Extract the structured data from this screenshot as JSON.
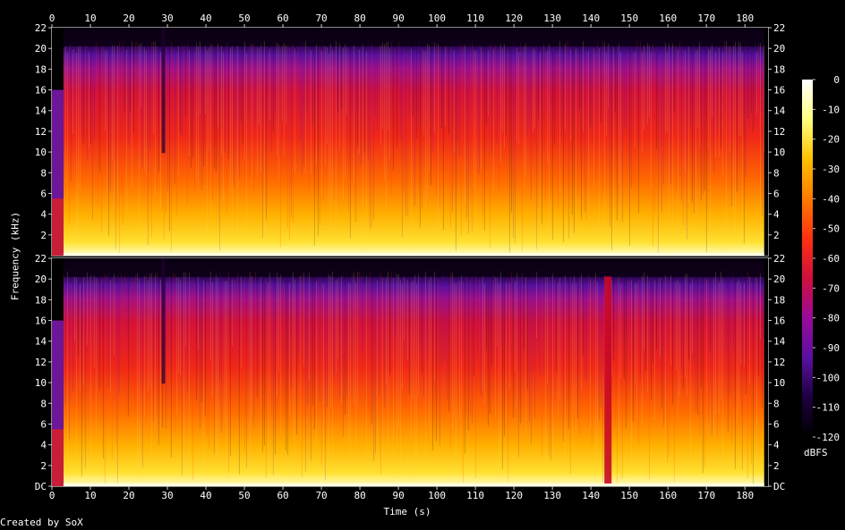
{
  "chart_data": {
    "type": "heatmap",
    "subtype": "spectrogram",
    "xlabel": "Time (s)",
    "ylabel": "Frequency (kHz)",
    "x_ticks": [
      0,
      10,
      20,
      30,
      40,
      50,
      60,
      70,
      80,
      90,
      100,
      110,
      120,
      130,
      140,
      150,
      160,
      170,
      180
    ],
    "xlim": [
      0,
      186
    ],
    "channels": [
      {
        "y_ticks": [
          "22",
          "20",
          "18",
          "16",
          "14",
          "12",
          "10",
          "8",
          "6",
          "4",
          "2"
        ],
        "ylim": [
          0,
          22
        ]
      },
      {
        "y_ticks": [
          "22",
          "20",
          "18",
          "16",
          "14",
          "12",
          "10",
          "8",
          "6",
          "4",
          "2",
          "DC"
        ],
        "ylim": [
          0,
          22
        ]
      }
    ],
    "colorbar": {
      "label": "dBFS",
      "ticks": [
        0,
        -10,
        -20,
        -30,
        -40,
        -50,
        -60,
        -70,
        -80,
        -90,
        -100,
        -110,
        -120
      ],
      "range": [
        -120,
        0
      ],
      "colors": [
        "#000000",
        "#1d0040",
        "#5a10a0",
        "#9a0a9a",
        "#d0103c",
        "#ff3010",
        "#ff7a00",
        "#ffc000",
        "#ffff80",
        "#ffffff"
      ]
    },
    "grid": false
  },
  "footer": {
    "credit": "Created by SoX"
  }
}
